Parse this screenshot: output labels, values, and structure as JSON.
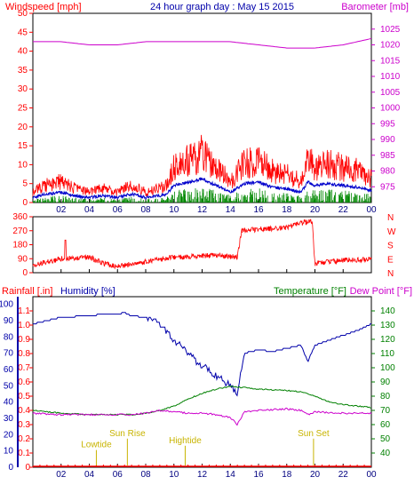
{
  "title": "24 hour graph day : May 15 2015",
  "colors": {
    "wind": "#ff0000",
    "gust": "#ff0000",
    "avgwind": "#0000cc",
    "low": "#008800",
    "barometer": "#cc00cc",
    "direction": "#ff0000",
    "rain": "#ff0000",
    "humidity": "#0000aa",
    "temperature": "#008000",
    "dewpoint": "#cc00cc",
    "frame": "#000000",
    "almanac": "#c8b400"
  },
  "hour_ticks": [
    "02",
    "04",
    "06",
    "08",
    "10",
    "12",
    "14",
    "16",
    "18",
    "20",
    "22",
    "00"
  ],
  "chart_data": [
    {
      "type": "line",
      "ylabel": "Windspeed [mph]",
      "y2label": "Barometer [mb]",
      "ylim": [
        0,
        50
      ],
      "y2lim": [
        970,
        1030
      ],
      "yticks": [
        "0",
        "5",
        "10",
        "15",
        "20",
        "25",
        "30",
        "35",
        "40",
        "45",
        "50"
      ],
      "y2ticks": [
        "975",
        "980",
        "985",
        "990",
        "995",
        "1000",
        "1005",
        "1010",
        "1015",
        "1020",
        "1025"
      ],
      "series": [
        {
          "name": "Windspeed",
          "x": [
            0,
            1,
            2,
            3,
            4,
            5,
            6,
            7,
            8,
            9,
            9.5,
            10,
            11,
            12,
            13,
            14,
            15,
            16,
            17,
            18,
            19,
            19.5,
            20,
            21,
            22,
            23,
            24
          ],
          "values": [
            3,
            5,
            6,
            4,
            3,
            4,
            3,
            5,
            3,
            4,
            5,
            10,
            12,
            14,
            10,
            6,
            11,
            12,
            9,
            8,
            6,
            12,
            10,
            11,
            10,
            9,
            7
          ]
        },
        {
          "name": "Barometer",
          "x": [
            0,
            2,
            4,
            6,
            8,
            10,
            12,
            14,
            16,
            18,
            20,
            22,
            24
          ],
          "values": [
            1021,
            1021,
            1020,
            1020,
            1021,
            1021,
            1021,
            1021,
            1020,
            1019,
            1019,
            1020,
            1022
          ]
        }
      ]
    },
    {
      "type": "line",
      "ylim": [
        0,
        360
      ],
      "yticks": [
        "0",
        "90",
        "180",
        "270",
        "360"
      ],
      "y2ticks": [
        "N",
        "W",
        "S",
        "E",
        "N"
      ],
      "series": [
        {
          "name": "Wind direction",
          "x": [
            0,
            2,
            4,
            5,
            6,
            8,
            10,
            12,
            13,
            14.5,
            14.8,
            16,
            18,
            19,
            19.8,
            20,
            22,
            24
          ],
          "values": [
            50,
            90,
            100,
            60,
            40,
            70,
            100,
            110,
            110,
            100,
            270,
            280,
            290,
            320,
            330,
            60,
            80,
            85
          ]
        }
      ]
    },
    {
      "type": "line",
      "ylabel": "Rainfall [.in]",
      "ylabel2": "Humidity [%]",
      "y2label": "Temperature [°F]",
      "y2label2": "Dew Point [°F]",
      "ylim": [
        0,
        1.2
      ],
      "y2lim": [
        30,
        150
      ],
      "yticks": [
        "0",
        "0.1",
        "0.2",
        "0.3",
        "0.4",
        "0.5",
        "0.6",
        "0.7",
        "0.8",
        "0.9",
        "1.0",
        "1.1"
      ],
      "hum_ticks": [
        "0",
        "10",
        "20",
        "30",
        "40",
        "50",
        "60",
        "70",
        "80",
        "90",
        "100"
      ],
      "y2ticks": [
        "40",
        "50",
        "60",
        "70",
        "80",
        "90",
        "100",
        "110",
        "120",
        "130",
        "140"
      ],
      "series": [
        {
          "name": "Humidity",
          "x": [
            0,
            2,
            4,
            5,
            6,
            6.5,
            7,
            8,
            9,
            10,
            11,
            12,
            13,
            14,
            14.5,
            15,
            16,
            17,
            18,
            19,
            19.5,
            20,
            21,
            22,
            23,
            24
          ],
          "values": [
            88,
            92,
            93,
            94,
            94,
            95,
            93,
            92,
            88,
            78,
            70,
            62,
            56,
            50,
            45,
            70,
            72,
            71,
            73,
            75,
            65,
            75,
            78,
            81,
            84,
            88
          ]
        },
        {
          "name": "Temperature",
          "x": [
            0,
            2,
            4,
            6,
            7,
            8,
            9,
            10,
            11,
            12,
            13,
            14,
            15,
            16,
            18,
            19,
            20,
            21,
            22,
            24
          ],
          "values": [
            70,
            68,
            67,
            67,
            67,
            68,
            70,
            73,
            78,
            82,
            85,
            87,
            86,
            85,
            84,
            83,
            80,
            76,
            74,
            72
          ]
        },
        {
          "name": "Dew Point",
          "x": [
            0,
            2,
            4,
            6,
            7,
            8,
            9,
            10,
            11,
            12,
            13,
            14,
            14.5,
            15,
            16,
            18,
            19,
            19.5,
            20,
            22,
            24
          ],
          "values": [
            68,
            67,
            67,
            67,
            67,
            68,
            70,
            69,
            68,
            68,
            67,
            65,
            60,
            69,
            70,
            71,
            70,
            67,
            69,
            68,
            68
          ]
        },
        {
          "name": "Rainfall",
          "x": [
            0,
            24
          ],
          "values": [
            0,
            0
          ]
        }
      ],
      "annotations": [
        {
          "label": "Sun Rise",
          "x": 6.7,
          "y": 0.22
        },
        {
          "label": "Lowtide",
          "x": 4.5,
          "y": 0.14
        },
        {
          "label": "Hightide",
          "x": 10.8,
          "y": 0.17
        },
        {
          "label": "Sun Set",
          "x": 19.9,
          "y": 0.22
        }
      ]
    }
  ]
}
